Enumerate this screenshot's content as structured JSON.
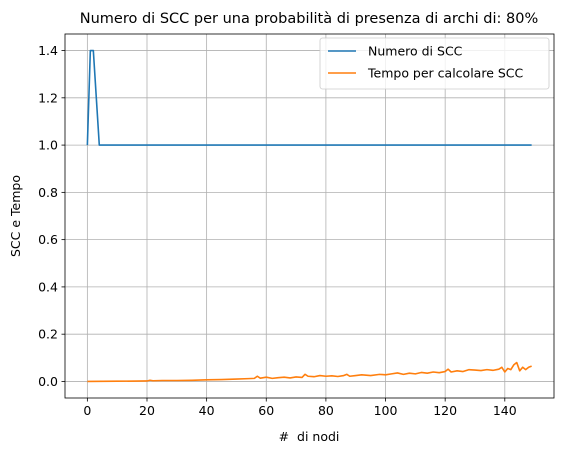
{
  "chart_data": {
    "type": "line",
    "title": "Numero di SCC per una probabilità di presenza di archi di: 80%",
    "xlabel": "#  di nodi",
    "ylabel": "SCC e Tempo",
    "xlim": [
      -7.5,
      156.5
    ],
    "ylim": [
      -0.07,
      1.47
    ],
    "xticks": [
      0,
      20,
      40,
      60,
      80,
      100,
      120,
      140
    ],
    "yticks": [
      0.0,
      0.2,
      0.4,
      0.6,
      0.8,
      1.0,
      1.2,
      1.4
    ],
    "xtick_labels": [
      "0",
      "20",
      "40",
      "60",
      "80",
      "100",
      "120",
      "140"
    ],
    "ytick_labels": [
      "0.0",
      "0.2",
      "0.4",
      "0.6",
      "0.8",
      "1.0",
      "1.2",
      "1.4"
    ],
    "grid": true,
    "legend": "top-right",
    "series": [
      {
        "name": "Numero di SCC",
        "color": "#1f77b4",
        "x": [
          0,
          1,
          2,
          3,
          4,
          149
        ],
        "y": [
          1.0,
          1.4,
          1.4,
          1.2,
          1.0,
          1.0
        ]
      },
      {
        "name": "Tempo per calcolare SCC",
        "color": "#ff7f0e",
        "x": [
          0,
          10,
          20,
          21,
          22,
          25,
          30,
          35,
          40,
          45,
          50,
          54,
          56,
          57,
          58,
          60,
          62,
          64,
          66,
          68,
          70,
          72,
          73,
          74,
          76,
          78,
          80,
          82,
          84,
          86,
          87,
          88,
          90,
          92,
          95,
          98,
          100,
          102,
          104,
          106,
          108,
          110,
          112,
          114,
          116,
          118,
          120,
          121,
          122,
          124,
          126,
          128,
          130,
          132,
          134,
          136,
          138,
          139,
          140,
          141,
          142,
          143,
          144,
          145,
          146,
          147,
          148,
          149
        ],
        "y": [
          0.0,
          0.001,
          0.002,
          0.005,
          0.003,
          0.004,
          0.004,
          0.005,
          0.007,
          0.008,
          0.01,
          0.012,
          0.013,
          0.022,
          0.014,
          0.018,
          0.013,
          0.016,
          0.018,
          0.015,
          0.019,
          0.017,
          0.03,
          0.022,
          0.02,
          0.025,
          0.022,
          0.024,
          0.021,
          0.025,
          0.03,
          0.022,
          0.025,
          0.028,
          0.025,
          0.03,
          0.028,
          0.032,
          0.036,
          0.03,
          0.035,
          0.032,
          0.038,
          0.035,
          0.04,
          0.037,
          0.042,
          0.052,
          0.04,
          0.045,
          0.042,
          0.05,
          0.048,
          0.046,
          0.05,
          0.047,
          0.052,
          0.06,
          0.04,
          0.055,
          0.05,
          0.07,
          0.08,
          0.045,
          0.06,
          0.05,
          0.06,
          0.065
        ]
      }
    ]
  }
}
